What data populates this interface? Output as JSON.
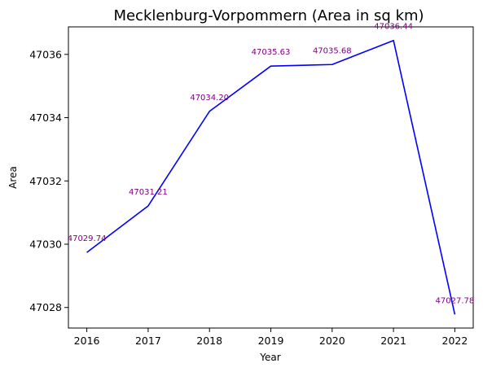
{
  "chart_data": {
    "type": "line",
    "title": "Mecklenburg-Vorpommern (Area in sq km)",
    "xlabel": "Year",
    "ylabel": "Area",
    "x": [
      2016,
      2017,
      2018,
      2019,
      2020,
      2021,
      2022
    ],
    "x_tick_labels": [
      "2016",
      "2017",
      "2018",
      "2019",
      "2020",
      "2021",
      "2022"
    ],
    "series": [
      {
        "values": [
          47029.74,
          47031.21,
          47034.2,
          47035.63,
          47035.68,
          47036.44,
          47027.78
        ]
      }
    ],
    "data_labels": [
      "47029.74",
      "47031.21",
      "47034.20",
      "47035.63",
      "47035.68",
      "47036.44",
      "47027.78"
    ],
    "y_ticks": [
      47028,
      47030,
      47032,
      47034,
      47036
    ],
    "y_tick_labels": [
      "47028",
      "47030",
      "47032",
      "47034",
      "47036"
    ],
    "xlim": [
      2015.7,
      2022.3
    ],
    "ylim": [
      47027.35,
      47036.87
    ],
    "grid": false,
    "colors": {
      "line": "#0000ff",
      "data_label": "#800080",
      "axes": "#000000"
    }
  }
}
